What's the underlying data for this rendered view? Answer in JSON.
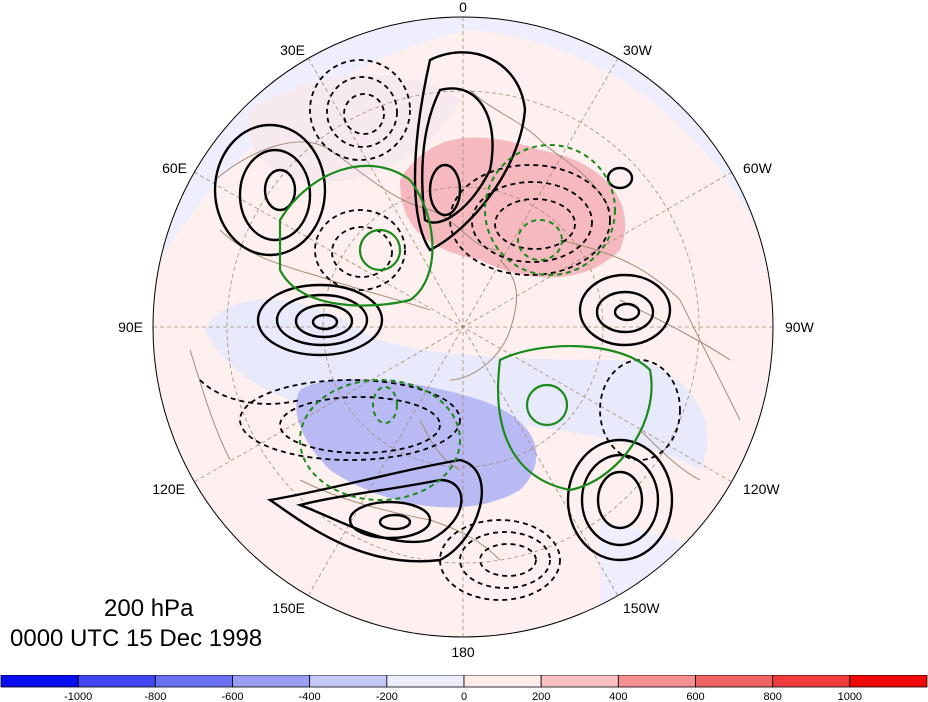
{
  "map": {
    "projection": "north polar stereographic",
    "longitude_labels": {
      "top": "0",
      "bottom": "180",
      "left": "90E",
      "right": "90W",
      "ul1": "30E",
      "ul2": "60E",
      "ur1": "30W",
      "ur2": "60W",
      "ll1": "120E",
      "ll2": "150E",
      "lr1": "120W",
      "lr2": "150W"
    }
  },
  "caption": {
    "level": "200 hPa",
    "time": "0000 UTC 15 Dec 1998"
  },
  "colorbar": {
    "ticks": [
      "-1000",
      "-800",
      "-600",
      "-400",
      "-200",
      "0",
      "200",
      "400",
      "600",
      "800",
      "1000"
    ],
    "colors": [
      "#0a0ff0",
      "#4146f2",
      "#6b70f0",
      "#9a9df4",
      "#c6c8f8",
      "#eceefc",
      "#fdecec",
      "#f8c0c0",
      "#f49090",
      "#f06464",
      "#f03c3c",
      "#f00808"
    ]
  },
  "colors": {
    "solid_contour": "#000000",
    "green_contour": "#1a8a1a",
    "coastline": "#a58c78",
    "grid": "#a58c78"
  }
}
